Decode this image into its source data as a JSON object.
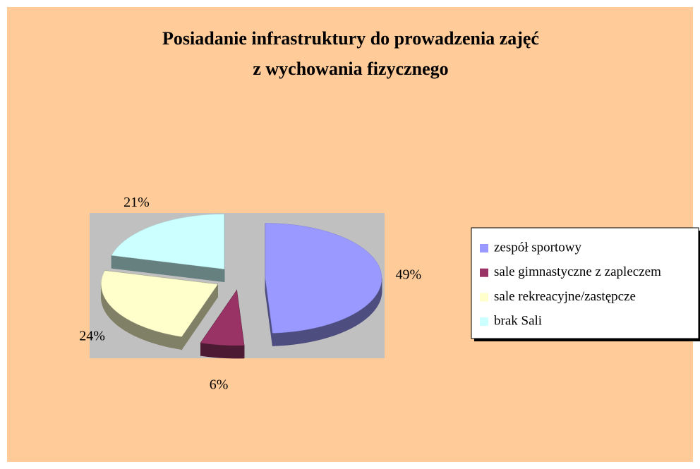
{
  "chart_data": {
    "type": "pie3d",
    "title": [
      "Posiadanie infrastruktury do prowadzenia zajęć",
      "z wychowania fizycznego"
    ],
    "categories": [
      "zespół sportowy",
      "sale gimnastyczne z zapleczem",
      "sale rekreacyjne/zastępcze",
      "brak Sali"
    ],
    "values": [
      49,
      6,
      24,
      21
    ],
    "value_labels": [
      "49%",
      "6%",
      "24%",
      "21%"
    ],
    "colors": [
      "#9999ff",
      "#993366",
      "#ffffcc",
      "#ccffff"
    ],
    "legend": "right"
  }
}
